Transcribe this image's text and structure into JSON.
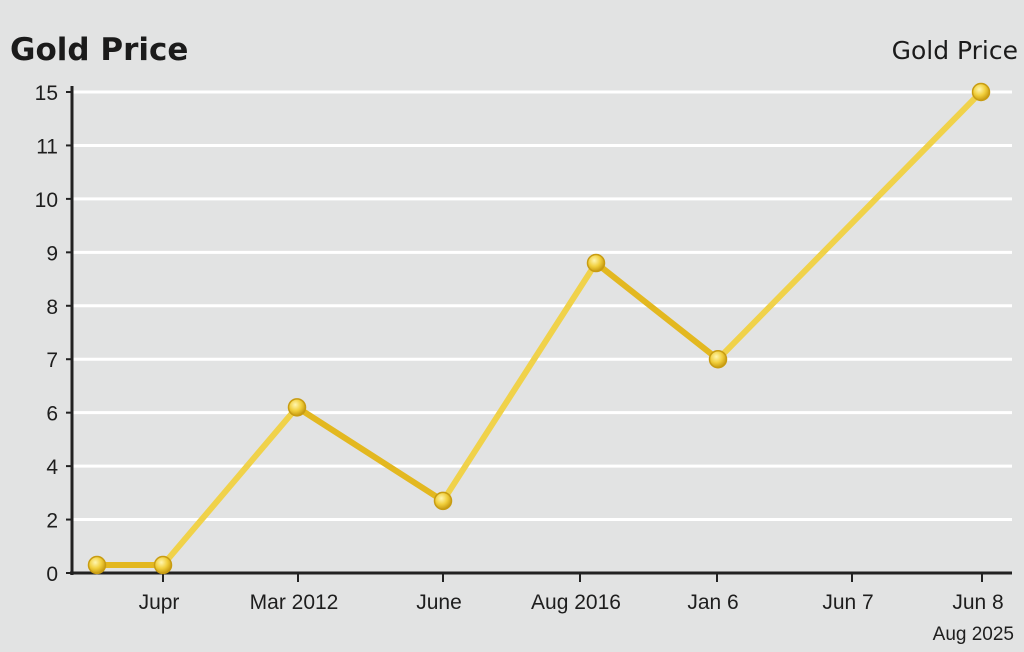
{
  "chart_data": {
    "type": "line",
    "title": "Gold Price",
    "legend": "Gold Price",
    "legend_position": "top-right",
    "grid": true,
    "y_tick_labels": [
      "0",
      "2",
      "4",
      "6",
      "7",
      "8",
      "9",
      "10",
      "11",
      "15"
    ],
    "x_tick_labels": [
      "Jupr",
      "Mar 2012",
      "June",
      "Aug 2016",
      "Jan 6",
      "Jun 7",
      "Jun 8"
    ],
    "x_sub_label": "Aug 2025",
    "series": [
      {
        "name": "Gold Price",
        "color": "#e3b820",
        "values": [
          0.3,
          0.3,
          6.1,
          2.7,
          8.8,
          7.0,
          15.0
        ]
      }
    ]
  }
}
